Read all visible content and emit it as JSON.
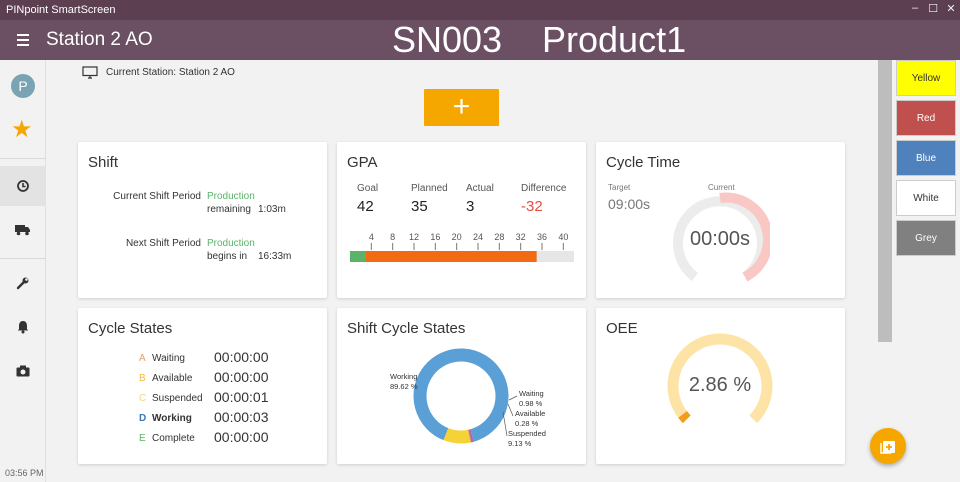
{
  "window": {
    "title": "PINpoint SmartScreen",
    "controls": {
      "minimize": "–",
      "maximize": "☐",
      "close": "✕"
    }
  },
  "header": {
    "station": "Station 2 AO",
    "serial": "SN003",
    "product": "Product1"
  },
  "sidebar": {
    "avatar_initial": "P",
    "items": [
      {
        "icon": "star-icon"
      },
      {
        "icon": "history-icon"
      },
      {
        "icon": "truck-icon"
      },
      {
        "icon": "wrench-icon"
      },
      {
        "icon": "bell-icon"
      },
      {
        "icon": "camera-icon"
      }
    ],
    "time": "03:56 PM"
  },
  "main": {
    "current_station": "Current Station: Station 2 AO",
    "add_label": "+"
  },
  "shift": {
    "title": "Shift",
    "current_label": "Current Shift Period",
    "current_status": "Production",
    "current_sub_label": "remaining",
    "current_sub_value": "1:03m",
    "next_label": "Next Shift Period",
    "next_status": "Production",
    "next_sub_label": "begins in",
    "next_sub_value": "16:33m"
  },
  "gpa": {
    "title": "GPA",
    "goal_label": "Goal",
    "goal": "42",
    "planned_label": "Planned",
    "planned": "35",
    "actual_label": "Actual",
    "actual": "3",
    "difference_label": "Difference",
    "difference": "-32",
    "ticks": [
      "4",
      "8",
      "12",
      "16",
      "20",
      "24",
      "28",
      "32",
      "36",
      "40"
    ],
    "bar_max": 42,
    "bar_actual": 3,
    "bar_planned": 35,
    "colors": {
      "actual": "#5bb36a",
      "planned": "#f26a13",
      "remaining": "#e6e6e6",
      "difference": "#e84c3d"
    }
  },
  "cycle_time": {
    "title": "Cycle Time",
    "target_label": "Target",
    "target": "09:00s",
    "current_label": "Current",
    "current": "00:00s"
  },
  "cycle_states": {
    "title": "Cycle States",
    "rows": [
      {
        "letter": "A",
        "name": "Waiting",
        "time": "00:00:00",
        "color": "#f29b5b"
      },
      {
        "letter": "B",
        "name": "Available",
        "time": "00:00:00",
        "color": "#f5b942"
      },
      {
        "letter": "C",
        "name": "Suspended",
        "time": "00:00:01",
        "color": "#f5d77a"
      },
      {
        "letter": "D",
        "name": "Working",
        "time": "00:00:03",
        "color": "#3a76b8"
      },
      {
        "letter": "E",
        "name": "Complete",
        "time": "00:00:00",
        "color": "#5bb36a"
      }
    ]
  },
  "shift_cycle_states": {
    "title": "Shift Cycle States",
    "segments": [
      {
        "name": "Working",
        "pct": "89.62 %",
        "value": 89.62,
        "color": "#5aa0d6"
      },
      {
        "name": "Waiting",
        "pct": "0.98 %",
        "value": 0.98,
        "color": "#b06ba4"
      },
      {
        "name": "Available",
        "pct": "0.28 %",
        "value": 0.28,
        "color": "#e9a63a"
      },
      {
        "name": "Suspended",
        "pct": "9.13 %",
        "value": 9.13,
        "color": "#f5d236"
      }
    ]
  },
  "oee": {
    "title": "OEE",
    "value_label": "2.86 %",
    "value": 2.86,
    "colors": {
      "track": "#fde3a6",
      "fill": "#f59c1b"
    }
  },
  "color_buttons": [
    {
      "label": "Yellow",
      "bg": "#ffff00",
      "fg": "#333333"
    },
    {
      "label": "Red",
      "bg": "#c0504d",
      "fg": "#ffffff"
    },
    {
      "label": "Blue",
      "bg": "#4f81bd",
      "fg": "#ffffff"
    },
    {
      "label": "White",
      "bg": "#ffffff",
      "fg": "#333333"
    },
    {
      "label": "Grey",
      "bg": "#808080",
      "fg": "#ffffff"
    }
  ]
}
